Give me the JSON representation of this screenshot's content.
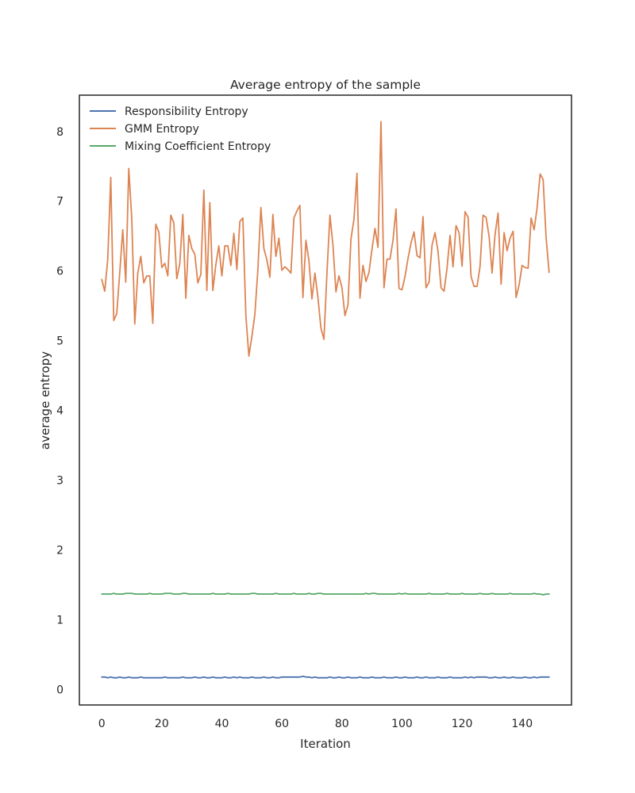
{
  "chart_data": {
    "type": "line",
    "title": "Average entropy of the sample",
    "xlabel": "Iteration",
    "ylabel": "average entropy",
    "xlim": [
      -7.45,
      156.45
    ],
    "ylim": [
      -0.22,
      8.52
    ],
    "xticks": [
      0,
      20,
      40,
      60,
      80,
      100,
      120,
      140
    ],
    "yticks": [
      0,
      1,
      2,
      3,
      4,
      5,
      6,
      7,
      8
    ],
    "grid": false,
    "legend_position": "top-left",
    "series": [
      {
        "name": "Responsibility Entropy",
        "color": "#4c72b0",
        "values": [
          0.18,
          0.18,
          0.17,
          0.18,
          0.17,
          0.17,
          0.18,
          0.17,
          0.17,
          0.18,
          0.17,
          0.17,
          0.17,
          0.18,
          0.17,
          0.17,
          0.17,
          0.17,
          0.17,
          0.17,
          0.17,
          0.18,
          0.17,
          0.17,
          0.17,
          0.17,
          0.17,
          0.18,
          0.17,
          0.17,
          0.17,
          0.18,
          0.17,
          0.17,
          0.18,
          0.17,
          0.17,
          0.18,
          0.17,
          0.17,
          0.17,
          0.18,
          0.17,
          0.17,
          0.18,
          0.17,
          0.18,
          0.17,
          0.17,
          0.17,
          0.18,
          0.17,
          0.17,
          0.17,
          0.18,
          0.17,
          0.17,
          0.18,
          0.17,
          0.17,
          0.18,
          0.18,
          0.18,
          0.18,
          0.18,
          0.18,
          0.18,
          0.19,
          0.18,
          0.18,
          0.17,
          0.18,
          0.17,
          0.17,
          0.17,
          0.17,
          0.18,
          0.17,
          0.17,
          0.18,
          0.17,
          0.17,
          0.18,
          0.17,
          0.17,
          0.17,
          0.18,
          0.17,
          0.17,
          0.17,
          0.18,
          0.17,
          0.17,
          0.17,
          0.18,
          0.17,
          0.17,
          0.17,
          0.18,
          0.17,
          0.17,
          0.18,
          0.17,
          0.17,
          0.17,
          0.18,
          0.17,
          0.17,
          0.18,
          0.17,
          0.17,
          0.17,
          0.18,
          0.17,
          0.17,
          0.17,
          0.18,
          0.17,
          0.17,
          0.17,
          0.17,
          0.18,
          0.17,
          0.18,
          0.17,
          0.18,
          0.18,
          0.18,
          0.18,
          0.17,
          0.17,
          0.18,
          0.17,
          0.17,
          0.18,
          0.17,
          0.17,
          0.18,
          0.17,
          0.17,
          0.17,
          0.18,
          0.17,
          0.17,
          0.18,
          0.17,
          0.18,
          0.18,
          0.18,
          0.18
        ]
      },
      {
        "name": "GMM Entropy",
        "color": "#dd8452",
        "values": [
          5.88,
          5.71,
          6.17,
          7.34,
          5.29,
          5.39,
          5.98,
          6.59,
          5.84,
          7.47,
          6.75,
          5.24,
          5.97,
          6.21,
          5.83,
          5.93,
          5.93,
          5.25,
          6.67,
          6.56,
          6.05,
          6.11,
          5.93,
          6.8,
          6.69,
          5.89,
          6.11,
          6.81,
          5.61,
          6.51,
          6.32,
          6.24,
          5.83,
          5.95,
          7.16,
          5.72,
          6.98,
          5.72,
          6.09,
          6.36,
          5.93,
          6.36,
          6.36,
          6.08,
          6.54,
          6.02,
          6.71,
          6.76,
          5.36,
          4.78,
          5.06,
          5.38,
          6.02,
          6.91,
          6.32,
          6.16,
          5.91,
          6.81,
          6.21,
          6.47,
          6.01,
          6.06,
          6.02,
          5.97,
          6.76,
          6.86,
          6.94,
          5.62,
          6.44,
          6.15,
          5.6,
          5.97,
          5.62,
          5.18,
          5.02,
          5.97,
          6.8,
          6.37,
          5.7,
          5.93,
          5.76,
          5.36,
          5.51,
          6.46,
          6.74,
          7.4,
          5.61,
          6.08,
          5.85,
          5.98,
          6.31,
          6.61,
          6.34,
          8.14,
          5.76,
          6.17,
          6.17,
          6.44,
          6.89,
          5.75,
          5.73,
          5.92,
          6.18,
          6.4,
          6.56,
          6.22,
          6.19,
          6.78,
          5.76,
          5.84,
          6.37,
          6.55,
          6.28,
          5.76,
          5.71,
          6.04,
          6.51,
          6.06,
          6.65,
          6.55,
          6.07,
          6.85,
          6.77,
          5.92,
          5.78,
          5.78,
          6.07,
          6.8,
          6.77,
          6.5,
          5.97,
          6.53,
          6.83,
          5.81,
          6.55,
          6.29,
          6.47,
          6.57,
          5.62,
          5.8,
          6.08,
          6.05,
          6.04,
          6.76,
          6.59,
          6.91,
          7.39,
          7.31,
          6.47,
          5.98
        ]
      },
      {
        "name": "Mixing Coefficient Entropy",
        "color": "#55a868",
        "values": [
          1.37,
          1.37,
          1.37,
          1.37,
          1.38,
          1.37,
          1.37,
          1.37,
          1.38,
          1.38,
          1.38,
          1.37,
          1.37,
          1.37,
          1.37,
          1.37,
          1.38,
          1.37,
          1.37,
          1.37,
          1.37,
          1.38,
          1.38,
          1.38,
          1.37,
          1.37,
          1.37,
          1.38,
          1.38,
          1.37,
          1.37,
          1.37,
          1.37,
          1.37,
          1.37,
          1.37,
          1.37,
          1.38,
          1.37,
          1.37,
          1.37,
          1.37,
          1.38,
          1.37,
          1.37,
          1.37,
          1.37,
          1.37,
          1.37,
          1.37,
          1.38,
          1.38,
          1.37,
          1.37,
          1.37,
          1.37,
          1.37,
          1.37,
          1.38,
          1.37,
          1.37,
          1.37,
          1.37,
          1.37,
          1.38,
          1.37,
          1.37,
          1.37,
          1.37,
          1.38,
          1.37,
          1.37,
          1.38,
          1.38,
          1.37,
          1.37,
          1.37,
          1.37,
          1.37,
          1.37,
          1.37,
          1.37,
          1.37,
          1.37,
          1.37,
          1.37,
          1.37,
          1.37,
          1.38,
          1.37,
          1.38,
          1.38,
          1.37,
          1.37,
          1.37,
          1.37,
          1.37,
          1.37,
          1.37,
          1.38,
          1.37,
          1.38,
          1.37,
          1.37,
          1.37,
          1.37,
          1.37,
          1.37,
          1.37,
          1.38,
          1.37,
          1.37,
          1.37,
          1.37,
          1.37,
          1.38,
          1.37,
          1.37,
          1.37,
          1.37,
          1.38,
          1.37,
          1.37,
          1.37,
          1.37,
          1.37,
          1.38,
          1.37,
          1.37,
          1.37,
          1.38,
          1.37,
          1.37,
          1.37,
          1.37,
          1.37,
          1.38,
          1.37,
          1.37,
          1.37,
          1.37,
          1.37,
          1.37,
          1.37,
          1.38,
          1.37,
          1.37,
          1.36,
          1.37,
          1.37
        ]
      }
    ]
  }
}
